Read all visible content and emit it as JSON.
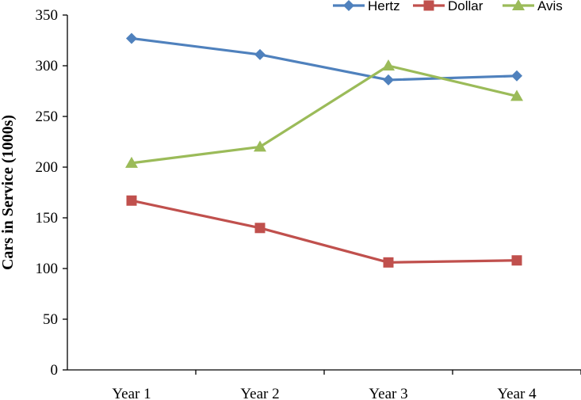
{
  "chart_data": {
    "type": "line",
    "title": "",
    "xlabel": "",
    "ylabel": "Cars in Service (1000s)",
    "categories": [
      "Year 1",
      "Year 2",
      "Year 3",
      "Year 4"
    ],
    "ylim": [
      0,
      350
    ],
    "yticks": [
      0,
      50,
      100,
      150,
      200,
      250,
      300,
      350
    ],
    "grid": false,
    "legend_position": "top-right",
    "series": [
      {
        "name": "Hertz",
        "values": [
          327,
          311,
          286,
          290
        ],
        "color": "#4F81BD",
        "marker": "diamond"
      },
      {
        "name": "Dollar",
        "values": [
          167,
          140,
          106,
          108
        ],
        "color": "#C0504D",
        "marker": "square"
      },
      {
        "name": "Avis",
        "values": [
          204,
          220,
          300,
          270
        ],
        "color": "#9BBB59",
        "marker": "triangle"
      }
    ]
  }
}
